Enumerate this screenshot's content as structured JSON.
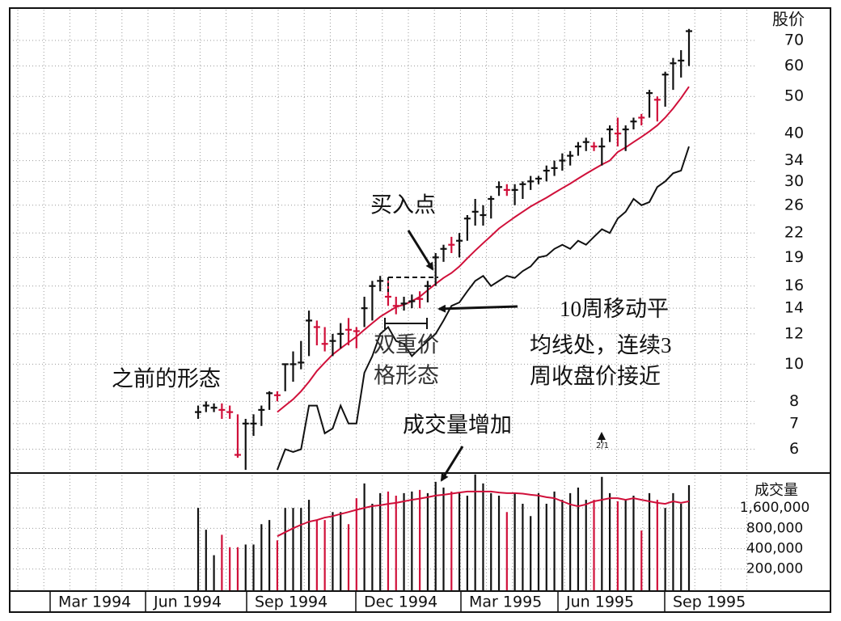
{
  "chart_data": {
    "type": "ohlc",
    "y_label": "股价",
    "yscale": "log",
    "ylim": [
      5.2,
      85
    ],
    "yticks": [
      6,
      7,
      8,
      10,
      12,
      14,
      16,
      19,
      22,
      26,
      30,
      34,
      40,
      50,
      60,
      70
    ],
    "grid": true,
    "x_labels": [
      "Mar 1994",
      "Jun 1994",
      "Sep 1994",
      "Dec 1994",
      "Mar 1995",
      "Jun 1995",
      "Sep 1995"
    ],
    "high": [
      7.8,
      8.0,
      7.9,
      7.9,
      7.8,
      7.4,
      7.2,
      7.4,
      7.8,
      8.5,
      8.5,
      10.0,
      10.8,
      11.5,
      13.8,
      13.0,
      12.5,
      12.0,
      12.8,
      13.2,
      12.5,
      15.0,
      16.5,
      17.0,
      16.5,
      15.0,
      15.0,
      15.2,
      15.5,
      16.5,
      19.5,
      20.5,
      21.5,
      22.0,
      24.5,
      27.0,
      26.0,
      27.5,
      30.0,
      29.5,
      29.5,
      30.0,
      31.0,
      31.0,
      33.0,
      34.0,
      35.5,
      36.0,
      38.0,
      39.0,
      38.0,
      39.0,
      42.0,
      44.0,
      42.0,
      44.0,
      45.0,
      52.0,
      50.0,
      58.0,
      63.0,
      66.0,
      75.0
    ],
    "low": [
      7.2,
      7.5,
      7.5,
      7.2,
      7.2,
      5.7,
      5.3,
      6.5,
      6.9,
      7.6,
      8.0,
      8.5,
      9.0,
      9.7,
      10.5,
      11.2,
      10.8,
      10.5,
      11.0,
      11.2,
      11.0,
      12.5,
      13.0,
      15.5,
      14.2,
      13.5,
      13.8,
      14.0,
      14.0,
      14.5,
      16.0,
      18.5,
      19.5,
      19.0,
      21.0,
      23.0,
      23.0,
      24.0,
      27.5,
      27.5,
      26.0,
      27.0,
      28.5,
      29.5,
      30.0,
      31.0,
      32.0,
      33.0,
      35.0,
      36.0,
      36.0,
      33.0,
      38.0,
      37.0,
      36.0,
      41.0,
      42.0,
      44.0,
      43.0,
      47.0,
      52.0,
      56.0,
      60.0
    ],
    "close": [
      7.5,
      7.8,
      7.7,
      7.6,
      7.5,
      5.8,
      7.0,
      7.0,
      7.6,
      8.4,
      8.3,
      10.0,
      10.0,
      10.1,
      13.0,
      12.5,
      11.3,
      11.5,
      12.0,
      12.3,
      12.2,
      14.0,
      16.0,
      16.5,
      15.0,
      14.2,
      14.4,
      14.6,
      14.8,
      16.0,
      19.0,
      20.0,
      20.5,
      21.0,
      24.0,
      25.0,
      24.5,
      27.0,
      29.0,
      28.5,
      28.5,
      29.5,
      30.0,
      30.5,
      32.0,
      32.5,
      34.0,
      35.0,
      37.0,
      38.0,
      37.0,
      37.0,
      41.0,
      40.0,
      41.0,
      43.0,
      44.0,
      51.0,
      49.0,
      57.0,
      61.0,
      62.0,
      74.0
    ],
    "bar_colors": [
      "#111",
      "#111",
      "#111",
      "#d0103a",
      "#d0103a",
      "#d0103a",
      "#111",
      "#111",
      "#111",
      "#111",
      "#d0103a",
      "#111",
      "#111",
      "#111",
      "#111",
      "#d0103a",
      "#d0103a",
      "#111",
      "#111",
      "#d0103a",
      "#d0103a",
      "#111",
      "#111",
      "#111",
      "#d0103a",
      "#d0103a",
      "#111",
      "#111",
      "#d0103a",
      "#111",
      "#111",
      "#111",
      "#d0103a",
      "#111",
      "#111",
      "#111",
      "#111",
      "#111",
      "#111",
      "#d0103a",
      "#111",
      "#111",
      "#111",
      "#111",
      "#111",
      "#111",
      "#111",
      "#111",
      "#111",
      "#111",
      "#d0103a",
      "#111",
      "#111",
      "#d0103a",
      "#111",
      "#111",
      "#d0103a",
      "#111",
      "#d0103a",
      "#111",
      "#111",
      "#111",
      "#111"
    ],
    "ma": {
      "color": "#d0103a",
      "values": [
        null,
        null,
        null,
        null,
        null,
        null,
        null,
        null,
        null,
        null,
        7.5,
        7.8,
        8.1,
        8.5,
        9.0,
        9.6,
        10.1,
        10.6,
        11.0,
        11.4,
        11.8,
        12.3,
        12.8,
        13.3,
        13.7,
        14.1,
        14.3,
        14.6,
        15.0,
        15.6,
        16.2,
        16.8,
        17.3,
        18.0,
        18.9,
        19.8,
        20.7,
        21.6,
        22.6,
        23.4,
        24.2,
        25.0,
        25.8,
        26.5,
        27.2,
        28.0,
        28.8,
        29.6,
        30.5,
        31.4,
        32.3,
        33.2,
        34.0,
        35.8,
        36.8,
        38.0,
        39.2,
        40.5,
        42.0,
        44.0,
        46.5,
        49.5,
        53.0
      ]
    },
    "rs": {
      "color": "#111",
      "values": [
        null,
        null,
        null,
        null,
        null,
        null,
        null,
        null,
        null,
        null,
        5.3,
        6.0,
        5.9,
        6.0,
        7.8,
        7.8,
        6.6,
        6.8,
        7.8,
        7.0,
        7.0,
        9.5,
        10.5,
        12.0,
        12.5,
        11.5,
        11.3,
        10.5,
        11.0,
        11.5,
        12.0,
        13.0,
        14.2,
        14.5,
        15.5,
        16.5,
        17.0,
        16.0,
        16.5,
        17.0,
        16.8,
        17.5,
        18.0,
        19.0,
        19.2,
        20.0,
        20.5,
        20.0,
        21.0,
        20.5,
        21.5,
        22.5,
        22.0,
        24.0,
        25.0,
        27.0,
        26.0,
        26.5,
        29.0,
        30.0,
        31.5,
        32.0,
        37.0
      ]
    },
    "volume": {
      "label": "成交量",
      "yscale": "log",
      "ylim": [
        97000,
        5100000
      ],
      "yticks": [
        {
          "value": 1600000,
          "label": "1,600,000"
        },
        {
          "value": 800000,
          "label": "800,000"
        },
        {
          "value": 400000,
          "label": "400,000"
        },
        {
          "value": 200000,
          "label": "200,000"
        }
      ],
      "values": [
        1600000,
        760000,
        320000,
        640000,
        420000,
        420000,
        460000,
        460000,
        920000,
        1060000,
        530000,
        1600000,
        1600000,
        1600000,
        2110000,
        1060000,
        1060000,
        1390000,
        1390000,
        920000,
        2230000,
        3680000,
        1840000,
        2640000,
        2790000,
        2430000,
        2640000,
        2790000,
        2950000,
        2640000,
        3890000,
        3200000,
        2790000,
        2640000,
        2430000,
        5000000,
        3680000,
        2640000,
        2430000,
        1390000,
        2640000,
        1840000,
        1210000,
        2640000,
        1840000,
        2790000,
        2110000,
        2640000,
        3200000,
        2110000,
        2110000,
        4600000,
        2640000,
        2000000,
        2110000,
        2430000,
        740000,
        2640000,
        2110000,
        1600000,
        2640000,
        1840000,
        3470000
      ],
      "ma": {
        "color": "#d0103a",
        "values": [
          null,
          null,
          null,
          null,
          null,
          null,
          null,
          null,
          null,
          null,
          610000,
          700000,
          800000,
          900000,
          1000000,
          1060000,
          1150000,
          1210000,
          1300000,
          1390000,
          1500000,
          1600000,
          1700000,
          1750000,
          1840000,
          1900000,
          2000000,
          2110000,
          2200000,
          2300000,
          2430000,
          2500000,
          2600000,
          2700000,
          2790000,
          2790000,
          2790000,
          2790000,
          2700000,
          2640000,
          2640000,
          2600000,
          2500000,
          2430000,
          2300000,
          2230000,
          2000000,
          1800000,
          1690000,
          1800000,
          2000000,
          2110000,
          2230000,
          2230000,
          2110000,
          2230000,
          2110000,
          2000000,
          1900000,
          1840000,
          2000000,
          1900000,
          2000000
        ]
      }
    },
    "annotations": {
      "buy_point": "买入点",
      "ma_note": [
        "10周移动平",
        "均线处，连续3",
        "周收盘价接近"
      ],
      "double_bottom": [
        "双重价",
        "格形态"
      ],
      "prior_base": "之前的形态",
      "volume_up": "成交量增加",
      "split": "2/1"
    }
  }
}
